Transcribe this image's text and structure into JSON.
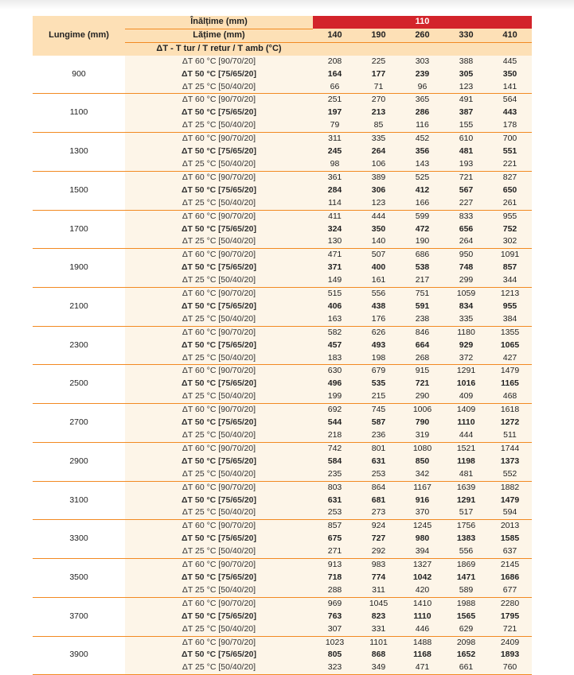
{
  "header": {
    "length_label": "Lungime (mm)",
    "height_label": "Înălțime (mm)",
    "height_value": "110",
    "width_label": "Lățime (mm)",
    "widths": [
      "140",
      "190",
      "260",
      "330",
      "410"
    ],
    "delta_label": "ΔT - T tur / T retur / T amb (°C)"
  },
  "row_labels": [
    "ΔT 60 °C [90/70/20]",
    "ΔT 50 °C [75/65/20]",
    "ΔT 25 °C [50/40/20]"
  ],
  "colors": {
    "accent_red": "#d3242b",
    "header_fill": "#fde0b6",
    "body_fill": "#fdf5e8",
    "divider_orange": "#f28a22"
  },
  "blocks": [
    {
      "length": "900",
      "rows": [
        [
          "208",
          "225",
          "303",
          "388",
          "445"
        ],
        [
          "164",
          "177",
          "239",
          "305",
          "350"
        ],
        [
          "66",
          "71",
          "96",
          "123",
          "141"
        ]
      ]
    },
    {
      "length": "1100",
      "rows": [
        [
          "251",
          "270",
          "365",
          "491",
          "564"
        ],
        [
          "197",
          "213",
          "286",
          "387",
          "443"
        ],
        [
          "79",
          "85",
          "116",
          "155",
          "178"
        ]
      ]
    },
    {
      "length": "1300",
      "rows": [
        [
          "311",
          "335",
          "452",
          "610",
          "700"
        ],
        [
          "245",
          "264",
          "356",
          "481",
          "551"
        ],
        [
          "98",
          "106",
          "143",
          "193",
          "221"
        ]
      ]
    },
    {
      "length": "1500",
      "rows": [
        [
          "361",
          "389",
          "525",
          "721",
          "827"
        ],
        [
          "284",
          "306",
          "412",
          "567",
          "650"
        ],
        [
          "114",
          "123",
          "166",
          "227",
          "261"
        ]
      ]
    },
    {
      "length": "1700",
      "rows": [
        [
          "411",
          "444",
          "599",
          "833",
          "955"
        ],
        [
          "324",
          "350",
          "472",
          "656",
          "752"
        ],
        [
          "130",
          "140",
          "190",
          "264",
          "302"
        ]
      ]
    },
    {
      "length": "1900",
      "rows": [
        [
          "471",
          "507",
          "686",
          "950",
          "1091"
        ],
        [
          "371",
          "400",
          "538",
          "748",
          "857"
        ],
        [
          "149",
          "161",
          "217",
          "299",
          "344"
        ]
      ]
    },
    {
      "length": "2100",
      "rows": [
        [
          "515",
          "556",
          "751",
          "1059",
          "1213"
        ],
        [
          "406",
          "438",
          "591",
          "834",
          "955"
        ],
        [
          "163",
          "176",
          "238",
          "335",
          "384"
        ]
      ]
    },
    {
      "length": "2300",
      "rows": [
        [
          "582",
          "626",
          "846",
          "1180",
          "1355"
        ],
        [
          "457",
          "493",
          "664",
          "929",
          "1065"
        ],
        [
          "183",
          "198",
          "268",
          "372",
          "427"
        ]
      ]
    },
    {
      "length": "2500",
      "rows": [
        [
          "630",
          "679",
          "915",
          "1291",
          "1479"
        ],
        [
          "496",
          "535",
          "721",
          "1016",
          "1165"
        ],
        [
          "199",
          "215",
          "290",
          "409",
          "468"
        ]
      ]
    },
    {
      "length": "2700",
      "rows": [
        [
          "692",
          "745",
          "1006",
          "1409",
          "1618"
        ],
        [
          "544",
          "587",
          "790",
          "1110",
          "1272"
        ],
        [
          "218",
          "236",
          "319",
          "444",
          "511"
        ]
      ]
    },
    {
      "length": "2900",
      "rows": [
        [
          "742",
          "801",
          "1080",
          "1521",
          "1744"
        ],
        [
          "584",
          "631",
          "850",
          "1198",
          "1373"
        ],
        [
          "235",
          "253",
          "342",
          "481",
          "552"
        ]
      ]
    },
    {
      "length": "3100",
      "rows": [
        [
          "803",
          "864",
          "1167",
          "1639",
          "1882"
        ],
        [
          "631",
          "681",
          "916",
          "1291",
          "1479"
        ],
        [
          "253",
          "273",
          "370",
          "517",
          "594"
        ]
      ]
    },
    {
      "length": "3300",
      "rows": [
        [
          "857",
          "924",
          "1245",
          "1756",
          "2013"
        ],
        [
          "675",
          "727",
          "980",
          "1383",
          "1585"
        ],
        [
          "271",
          "292",
          "394",
          "556",
          "637"
        ]
      ]
    },
    {
      "length": "3500",
      "rows": [
        [
          "913",
          "983",
          "1327",
          "1869",
          "2145"
        ],
        [
          "718",
          "774",
          "1042",
          "1471",
          "1686"
        ],
        [
          "288",
          "311",
          "420",
          "589",
          "677"
        ]
      ]
    },
    {
      "length": "3700",
      "rows": [
        [
          "969",
          "1045",
          "1410",
          "1988",
          "2280"
        ],
        [
          "763",
          "823",
          "1110",
          "1565",
          "1795"
        ],
        [
          "307",
          "331",
          "446",
          "629",
          "721"
        ]
      ]
    },
    {
      "length": "3900",
      "rows": [
        [
          "1023",
          "1101",
          "1488",
          "2098",
          "2409"
        ],
        [
          "805",
          "868",
          "1168",
          "1652",
          "1893"
        ],
        [
          "323",
          "349",
          "471",
          "661",
          "760"
        ]
      ]
    }
  ]
}
